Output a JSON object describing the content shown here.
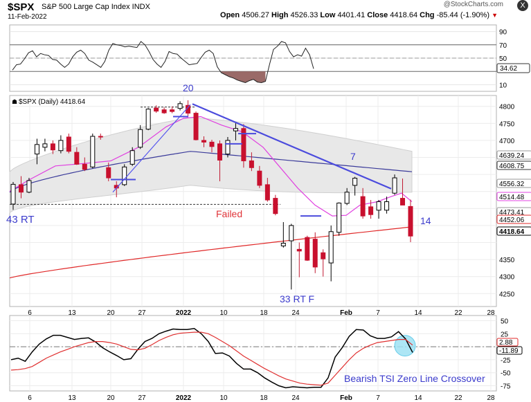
{
  "header": {
    "symbol": "$SPX",
    "description": "S&P 500 Large Cap Index INDX",
    "date": "11-Feb-2022",
    "brand": "@StockCharts.com",
    "open_label": "Open",
    "open": "4506.27",
    "high_label": "High",
    "high": "4526.33",
    "low_label": "Low",
    "low": "4401.41",
    "close_label": "Close",
    "close": "4418.64",
    "chg_label": "Chg",
    "chg": "-85.44 (-1.90%)",
    "down_arrow": "▼",
    "close_button": "X"
  },
  "chart_data": [
    {
      "type": "line",
      "panel": "rsi",
      "yticks": [
        90,
        70,
        50,
        10
      ],
      "ylim": [
        0,
        100
      ],
      "value_tag": "34.62",
      "overbought": 70,
      "oversold": 30,
      "x": [
        0,
        1,
        2,
        3,
        4,
        5,
        6,
        7,
        8,
        9,
        10,
        11,
        12,
        13,
        14,
        15,
        16,
        17,
        18,
        19,
        20,
        21,
        22,
        23,
        24,
        25,
        26,
        27,
        28,
        29,
        30,
        31,
        32,
        33,
        34,
        35,
        36,
        37,
        38,
        39,
        40,
        41,
        42,
        43,
        44,
        45,
        46,
        47,
        48,
        49,
        50,
        51,
        52,
        53,
        54,
        55,
        56,
        57,
        58,
        59,
        60,
        61,
        62,
        63,
        64,
        65,
        66,
        67,
        68,
        69,
        70,
        71,
        72,
        73,
        74,
        75,
        76,
        77,
        78,
        79,
        80,
        81,
        82,
        83,
        84,
        85,
        86,
        87,
        88,
        89,
        90,
        91,
        92,
        93,
        94,
        95,
        96,
        97,
        98,
        99,
        100
      ],
      "values": [
        32,
        40,
        41,
        49,
        58,
        61,
        52,
        57,
        55,
        54,
        48,
        47,
        41,
        36,
        41,
        52,
        59,
        62,
        57,
        47,
        44,
        40,
        36,
        45,
        62,
        72,
        70,
        69,
        67,
        68,
        67,
        66,
        75,
        70,
        60,
        48,
        41,
        36,
        45,
        60,
        57,
        56,
        50,
        45,
        40,
        41,
        42,
        51,
        59,
        62,
        57,
        37,
        28,
        25,
        22,
        20,
        17,
        15,
        13,
        16,
        18,
        14,
        13,
        15,
        40,
        63,
        68,
        75,
        73,
        60,
        52,
        55,
        53,
        65,
        55,
        34,
        null,
        null,
        null,
        null,
        null,
        null,
        null,
        null,
        null,
        null,
        null,
        null,
        null,
        null,
        null,
        null,
        null,
        null,
        null,
        null,
        null,
        null,
        null,
        null,
        null
      ],
      "shaded_range": [
        52,
        63
      ]
    },
    {
      "type": "candlestick",
      "panel": "price",
      "title": "$SPX (Daily) 4418.64",
      "yticks": [
        4800,
        4750,
        4700,
        4650,
        4600,
        4550,
        4500,
        4450,
        4400,
        4350,
        4300,
        4250
      ],
      "ylim": [
        4212,
        4832
      ],
      "xticks": [
        "6",
        "13",
        "20",
        "27",
        "2022",
        "10",
        "18",
        "24",
        "Feb",
        "7",
        "14",
        "22",
        "28"
      ],
      "candles": [
        {
          "o": 4513,
          "h": 4578,
          "l": 4496,
          "c": 4571
        },
        {
          "o": 4570,
          "h": 4595,
          "l": 4530,
          "c": 4548
        },
        {
          "o": 4548,
          "h": 4590,
          "l": 4545,
          "c": 4582
        },
        {
          "o": 4660,
          "h": 4705,
          "l": 4630,
          "c": 4688
        },
        {
          "o": 4680,
          "h": 4705,
          "l": 4668,
          "c": 4690
        },
        {
          "o": 4690,
          "h": 4700,
          "l": 4660,
          "c": 4672
        },
        {
          "o": 4670,
          "h": 4715,
          "l": 4662,
          "c": 4700
        },
        {
          "o": 4710,
          "h": 4720,
          "l": 4662,
          "c": 4668
        },
        {
          "o": 4665,
          "h": 4680,
          "l": 4628,
          "c": 4630
        },
        {
          "o": 4630,
          "h": 4650,
          "l": 4610,
          "c": 4615
        },
        {
          "o": 4622,
          "h": 4720,
          "l": 4618,
          "c": 4712
        },
        {
          "o": 4712,
          "h": 4720,
          "l": 4702,
          "c": 4710
        },
        {
          "o": 4620,
          "h": 4635,
          "l": 4580,
          "c": 4590
        },
        {
          "o": 4568,
          "h": 4580,
          "l": 4533,
          "c": 4560
        },
        {
          "o": 4570,
          "h": 4630,
          "l": 4566,
          "c": 4622
        },
        {
          "o": 4630,
          "h": 4680,
          "l": 4625,
          "c": 4670
        },
        {
          "o": 4680,
          "h": 4745,
          "l": 4675,
          "c": 4732
        },
        {
          "o": 4733,
          "h": 4795,
          "l": 4730,
          "c": 4792
        },
        {
          "o": 4795,
          "h": 4803,
          "l": 4781,
          "c": 4786
        },
        {
          "o": 4790,
          "h": 4797,
          "l": 4778,
          "c": 4781
        },
        {
          "o": 4790,
          "h": 4800,
          "l": 4780,
          "c": 4785
        },
        {
          "o": 4794,
          "h": 4815,
          "l": 4788,
          "c": 4808
        },
        {
          "o": 4803,
          "h": 4818,
          "l": 4770,
          "c": 4780
        },
        {
          "o": 4780,
          "h": 4785,
          "l": 4700,
          "c": 4702
        },
        {
          "o": 4700,
          "h": 4712,
          "l": 4680,
          "c": 4695
        },
        {
          "o": 4695,
          "h": 4702,
          "l": 4665,
          "c": 4682
        },
        {
          "o": 4690,
          "h": 4700,
          "l": 4580,
          "c": 4642
        },
        {
          "o": 4660,
          "h": 4710,
          "l": 4650,
          "c": 4700
        },
        {
          "o": 4728,
          "h": 4752,
          "l": 4700,
          "c": 4735
        },
        {
          "o": 4735,
          "h": 4748,
          "l": 4620,
          "c": 4640
        },
        {
          "o": 4640,
          "h": 4665,
          "l": 4610,
          "c": 4620
        },
        {
          "o": 4610,
          "h": 4625,
          "l": 4560,
          "c": 4568
        },
        {
          "o": 4570,
          "h": 4590,
          "l": 4520,
          "c": 4525
        },
        {
          "o": 4530,
          "h": 4540,
          "l": 4480,
          "c": 4485
        },
        {
          "o": 4390,
          "h": 4460,
          "l": 4385,
          "c": 4398
        },
        {
          "o": 4405,
          "h": 4455,
          "l": 4262,
          "c": 4450
        },
        {
          "o": 4380,
          "h": 4400,
          "l": 4298,
          "c": 4375
        },
        {
          "o": 4415,
          "h": 4420,
          "l": 4346,
          "c": 4348
        },
        {
          "o": 4410,
          "h": 4430,
          "l": 4310,
          "c": 4328
        },
        {
          "o": 4370,
          "h": 4380,
          "l": 4300,
          "c": 4352
        },
        {
          "o": 4340,
          "h": 4450,
          "l": 4286,
          "c": 4432
        },
        {
          "o": 4430,
          "h": 4518,
          "l": 4420,
          "c": 4516
        },
        {
          "o": 4515,
          "h": 4560,
          "l": 4510,
          "c": 4548
        },
        {
          "o": 4568,
          "h": 4593,
          "l": 4538,
          "c": 4589
        },
        {
          "o": 4535,
          "h": 4560,
          "l": 4470,
          "c": 4478
        },
        {
          "o": 4505,
          "h": 4525,
          "l": 4470,
          "c": 4482
        },
        {
          "o": 4495,
          "h": 4525,
          "l": 4470,
          "c": 4520
        },
        {
          "o": 4495,
          "h": 4535,
          "l": 4485,
          "c": 4520
        },
        {
          "o": 4545,
          "h": 4600,
          "l": 4540,
          "c": 4590
        },
        {
          "o": 4530,
          "h": 4588,
          "l": 4510,
          "c": 4510
        },
        {
          "o": 4506,
          "h": 4526,
          "l": 4401,
          "c": 4419
        }
      ],
      "price_tags": [
        "4639.24",
        "4608.75",
        "4556.32",
        "4514.48",
        "4473.41",
        "4452.06",
        "4418.64"
      ],
      "annotations": [
        "20",
        "43 RT",
        "Failed",
        "7",
        "33 RT F",
        "14"
      ]
    },
    {
      "type": "line",
      "panel": "tsi",
      "yticks": [
        50,
        25,
        0,
        -25,
        -50,
        -75
      ],
      "ylim": [
        -85,
        60
      ],
      "value_tags": [
        "2.88",
        "-11.89"
      ],
      "annotation": "Bearish TSI Zero Line Crossover",
      "xticks": [
        "6",
        "13",
        "20",
        "27",
        "2022",
        "10",
        "18",
        "24",
        "Feb",
        "7",
        "14",
        "22",
        "28"
      ],
      "series": [
        {
          "name": "",
          "color": "#000000",
          "values": [
            -25,
            -22,
            -28,
            -10,
            5,
            15,
            22,
            22,
            18,
            14,
            16,
            17,
            9,
            -2,
            -10,
            -17,
            -25,
            -23,
            -5,
            10,
            16,
            25,
            30,
            34,
            33,
            33,
            35,
            25,
            10,
            -13,
            -12,
            -18,
            -32,
            -43,
            -43,
            -50,
            -60,
            -68,
            -75,
            -79,
            -77,
            -78,
            -79,
            -78,
            -78,
            -60,
            -20,
            -2,
            20,
            33,
            32,
            21,
            16,
            16,
            19,
            29,
            15,
            -11
          ]
        },
        {
          "name": "",
          "color": "#e03030",
          "values": [
            -45,
            -44,
            -42,
            -38,
            -30,
            -22,
            -16,
            -10,
            -5,
            0,
            4,
            8,
            10,
            10,
            8,
            5,
            0,
            -5,
            -6,
            -3,
            4,
            12,
            18,
            23,
            26,
            27,
            28,
            28,
            25,
            18,
            10,
            2,
            -8,
            -18,
            -26,
            -34,
            -42,
            -49,
            -56,
            -62,
            -66,
            -70,
            -72,
            -73,
            -74,
            -70,
            -55,
            -40,
            -25,
            -12,
            -3,
            3,
            8,
            10,
            12,
            14,
            14,
            3
          ]
        }
      ]
    }
  ]
}
